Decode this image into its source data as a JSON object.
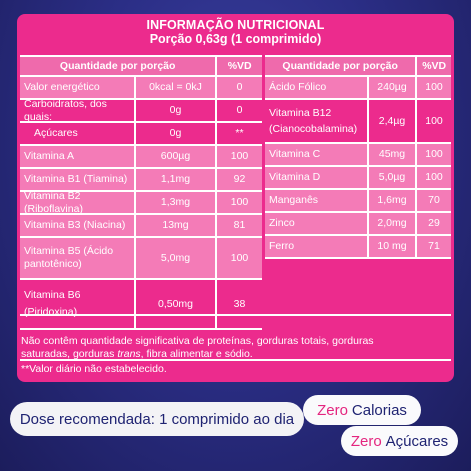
{
  "panel": {
    "title": "INFORMAÇÃO NUTRICIONAL",
    "subtitle": "Porção 0,63g (1 comprimido)"
  },
  "left_table": {
    "headers": [
      "Quantidade por porção",
      "%VD"
    ],
    "rows": [
      {
        "name": "Valor energético",
        "qty": "0kcal = 0kJ",
        "vd": "0"
      },
      {
        "name": "Carboidratos, dos quais:",
        "qty": "0g",
        "vd": "0"
      },
      {
        "name": "Açúcares",
        "qty": "0g",
        "vd": "**"
      },
      {
        "name": "Vitamina A",
        "qty": "600µg",
        "vd": "100"
      },
      {
        "name": "Vitamina B1 (Tiamina)",
        "qty": "1,1mg",
        "vd": "92"
      },
      {
        "name": "Vitamina B2 (Riboflavina)",
        "qty": "1,3mg",
        "vd": "100"
      },
      {
        "name": "Vitamina B3 (Niacina)",
        "qty": "13mg",
        "vd": "81"
      },
      {
        "name_line1": "Vitamina B5 (Ácido",
        "name_line2": "pantotênico)",
        "qty": "5,0mg",
        "vd": "100"
      },
      {
        "name_line1": "Vitamina B6",
        "name_line2": "(Piridoxina)",
        "qty": "0,50mg",
        "vd": "38"
      }
    ]
  },
  "right_table": {
    "headers": [
      "Quantidade por porção",
      "%VD"
    ],
    "rows": [
      {
        "name": "Ácido Fólico",
        "qty": "240µg",
        "vd": "100"
      },
      {
        "name_line1": "Vitamina B12",
        "name_line2": "(Cianocobalamina)",
        "qty": "2,4µg",
        "vd": "100"
      },
      {
        "name": "Vitamina C",
        "qty": "45mg",
        "vd": "100"
      },
      {
        "name": "Vitamina D",
        "qty": "5,0µg",
        "vd": "100"
      },
      {
        "name": "Manganês",
        "qty": "1,6mg",
        "vd": "70"
      },
      {
        "name": "Zinco",
        "qty": "2,0mg",
        "vd": "29"
      },
      {
        "name": "Ferro",
        "qty": "10 mg",
        "vd": "71"
      }
    ]
  },
  "notes": {
    "line1": "Não contêm quantidade significativa de proteínas, gorduras totais, gorduras",
    "line2_a": "saturadas, gorduras ",
    "line2_trans": "trans",
    "line2_b": ", fibra alimentar e sódio.",
    "footnote": "**Valor diário não estabelecido."
  },
  "dose": {
    "text": "Dose recomendada: 1 comprimido ao dia"
  },
  "badges": [
    {
      "accent": "Zero",
      "text": "Calorias"
    },
    {
      "accent": "Zero",
      "text": "Açúcares"
    }
  ],
  "colors": {
    "panel": "#ec2b8d",
    "row_light": "#f47bb7",
    "background": "#2b2e86",
    "text_dark": "#1f2372",
    "accent": "#e4257f"
  }
}
